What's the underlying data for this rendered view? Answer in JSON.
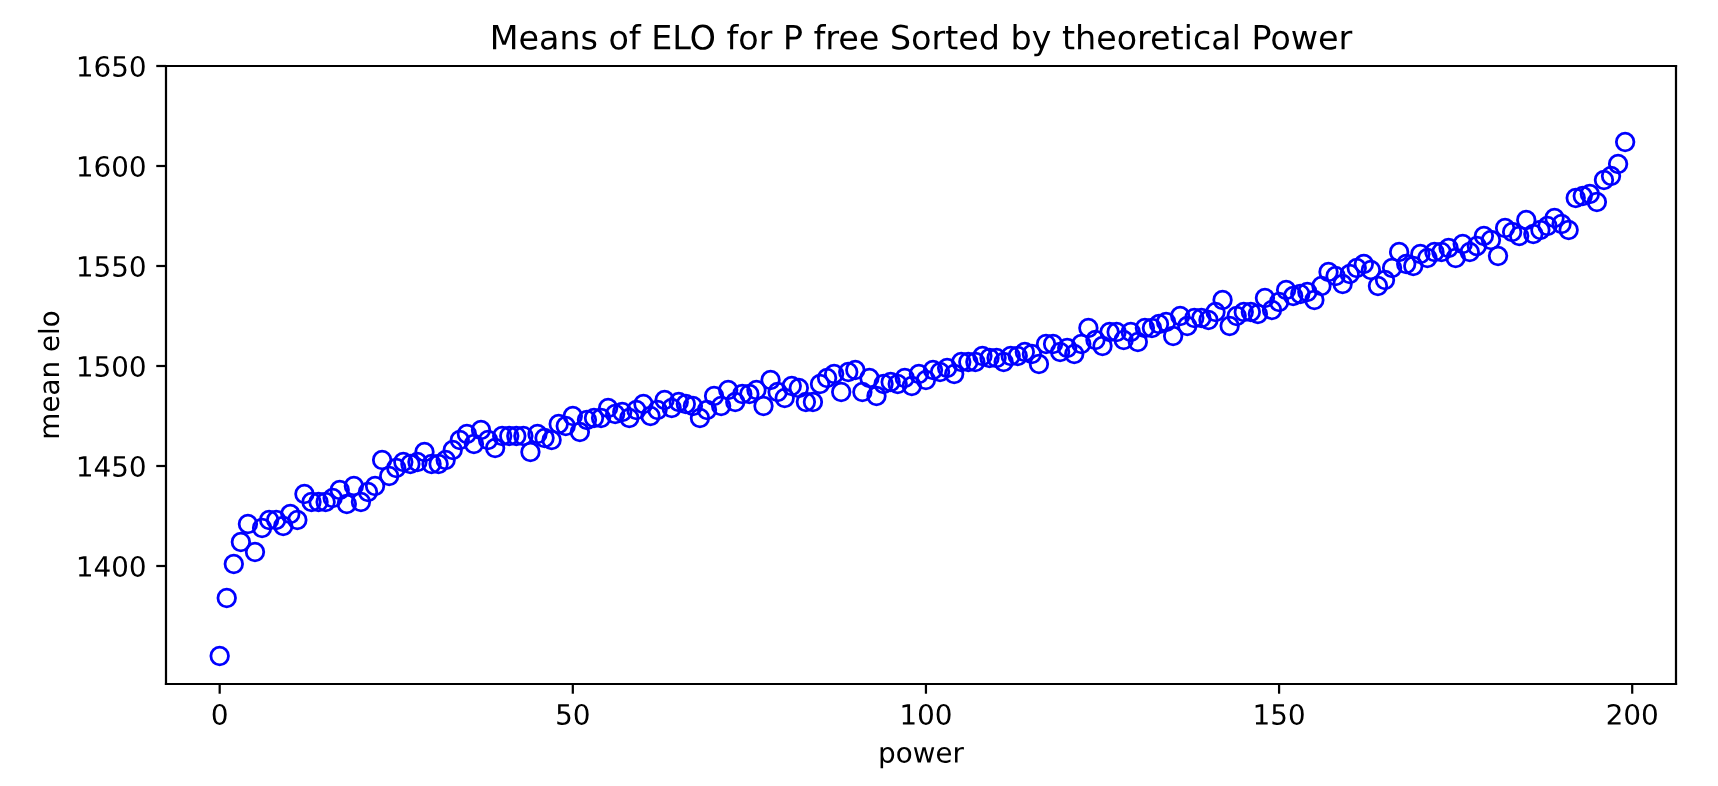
{
  "chart_data": {
    "type": "scatter",
    "title": "Means of ELO for P free Sorted by theoretical Power",
    "xlabel": "power",
    "ylabel": "mean elo",
    "x": [
      0,
      1,
      2,
      3,
      4,
      5,
      6,
      7,
      8,
      9,
      10,
      11,
      12,
      13,
      14,
      15,
      16,
      17,
      18,
      19,
      20,
      21,
      22,
      23,
      24,
      25,
      26,
      27,
      28,
      29,
      30,
      31,
      32,
      33,
      34,
      35,
      36,
      37,
      38,
      39,
      40,
      41,
      42,
      43,
      44,
      45,
      46,
      47,
      48,
      49,
      50,
      51,
      52,
      53,
      54,
      55,
      56,
      57,
      58,
      59,
      60,
      61,
      62,
      63,
      64,
      65,
      66,
      67,
      68,
      69,
      70,
      71,
      72,
      73,
      74,
      75,
      76,
      77,
      78,
      79,
      80,
      81,
      82,
      83,
      84,
      85,
      86,
      87,
      88,
      89,
      90,
      91,
      92,
      93,
      94,
      95,
      96,
      97,
      98,
      99,
      100,
      101,
      102,
      103,
      104,
      105,
      106,
      107,
      108,
      109,
      110,
      111,
      112,
      113,
      114,
      115,
      116,
      117,
      118,
      119,
      120,
      121,
      122,
      123,
      124,
      125,
      126,
      127,
      128,
      129,
      130,
      131,
      132,
      133,
      134,
      135,
      136,
      137,
      138,
      139,
      140,
      141,
      142,
      143,
      144,
      145,
      146,
      147,
      148,
      149,
      150,
      151,
      152,
      153,
      154,
      155,
      156,
      157,
      158,
      159,
      160,
      161,
      162,
      163,
      164,
      165,
      166,
      167,
      168,
      169,
      170,
      171,
      172,
      173,
      174,
      175,
      176,
      177,
      178,
      179,
      180,
      181,
      182,
      183,
      184,
      185,
      186,
      187,
      188,
      189,
      190,
      191,
      192,
      193,
      194,
      195,
      196,
      197,
      198,
      199
    ],
    "series": [
      {
        "color": "#0000ff",
        "values": [
          1355,
          1384,
          1401,
          1412,
          1421,
          1407,
          1419,
          1423,
          1423,
          1420,
          1426,
          1423,
          1436,
          1432,
          1432,
          1432,
          1434,
          1438,
          1431,
          1440,
          1432,
          1437,
          1440,
          1453,
          1445,
          1449,
          1452,
          1451,
          1452,
          1457,
          1451,
          1451,
          1453,
          1458,
          1463,
          1466,
          1461,
          1468,
          1463,
          1459,
          1465,
          1465,
          1465,
          1465,
          1457,
          1466,
          1464,
          1463,
          1471,
          1470,
          1475,
          1467,
          1473,
          1474,
          1474,
          1479,
          1476,
          1477,
          1474,
          1478,
          1481,
          1475,
          1478,
          1483,
          1479,
          1482,
          1481,
          1480,
          1474,
          1478,
          1485,
          1480,
          1488,
          1482,
          1486,
          1486,
          1488,
          1480,
          1493,
          1487,
          1484,
          1490,
          1489,
          1482,
          1482,
          1491,
          1494,
          1496,
          1487,
          1497,
          1498,
          1487,
          1494,
          1485,
          1491,
          1492,
          1491,
          1494,
          1490,
          1496,
          1493,
          1498,
          1497,
          1499,
          1496,
          1502,
          1502,
          1502,
          1505,
          1504,
          1504,
          1502,
          1505,
          1505,
          1507,
          1506,
          1501,
          1511,
          1511,
          1507,
          1509,
          1506,
          1511,
          1519,
          1513,
          1510,
          1517,
          1517,
          1513,
          1517,
          1512,
          1519,
          1519,
          1521,
          1522,
          1515,
          1525,
          1520,
          1524,
          1524,
          1523,
          1527,
          1533,
          1520,
          1525,
          1527,
          1527,
          1526,
          1534,
          1528,
          1532,
          1538,
          1535,
          1536,
          1537,
          1533,
          1540,
          1547,
          1545,
          1541,
          1546,
          1549,
          1551,
          1548,
          1540,
          1543,
          1549,
          1557,
          1551,
          1550,
          1556,
          1554,
          1557,
          1557,
          1559,
          1554,
          1561,
          1557,
          1560,
          1565,
          1563,
          1555,
          1569,
          1567,
          1565,
          1573,
          1566,
          1568,
          1570,
          1574,
          1571,
          1568,
          1584,
          1585,
          1586,
          1582,
          1593,
          1595,
          1601,
          1612
        ]
      }
    ],
    "xlim": [
      -7.6,
      206.2
    ],
    "ylim": [
      1341,
      1650
    ],
    "xticks": [
      0,
      50,
      100,
      150,
      200
    ],
    "yticks": [
      1400,
      1450,
      1500,
      1550,
      1600,
      1650
    ],
    "marker": "circle",
    "grid": false,
    "legend": false
  }
}
